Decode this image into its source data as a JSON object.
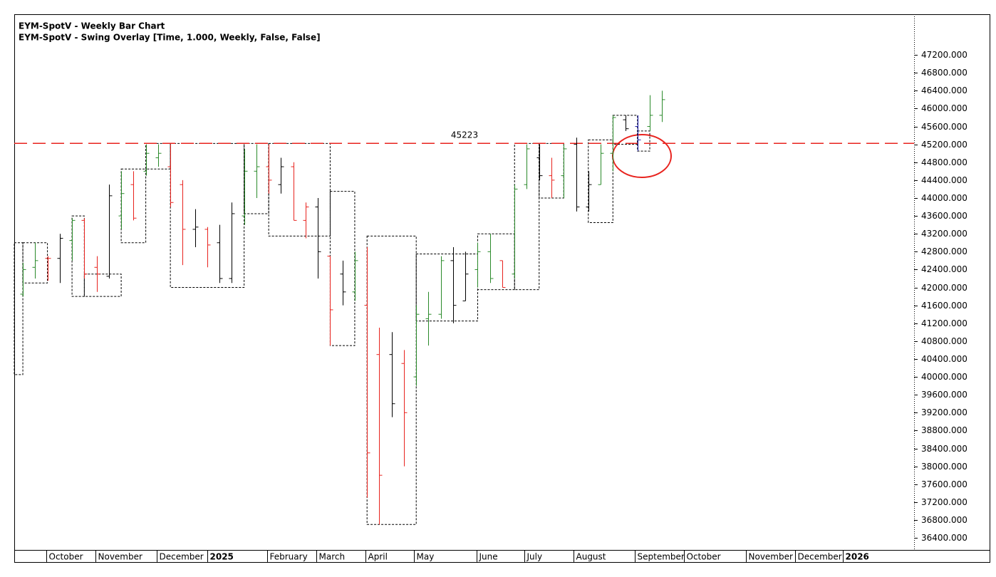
{
  "chart_data": {
    "type": "ohlc",
    "title": "EYM-SpotV - Weekly Bar Chart",
    "subtitle": "EYM-SpotV - Swing Overlay [Time, 1.000, Weekly, False, False]",
    "xlim": [
      -0.7,
      72.5
    ],
    "ylim": [
      36130,
      48110
    ],
    "yticks": [
      {
        "value": 36400,
        "label": "36400.000"
      },
      {
        "value": 36800,
        "label": "36800.000"
      },
      {
        "value": 37200,
        "label": "37200.000"
      },
      {
        "value": 37600,
        "label": "37600.000"
      },
      {
        "value": 38000,
        "label": "38000.000"
      },
      {
        "value": 38400,
        "label": "38400.000"
      },
      {
        "value": 38800,
        "label": "38800.000"
      },
      {
        "value": 39200,
        "label": "39200.000"
      },
      {
        "value": 39600,
        "label": "39600.000"
      },
      {
        "value": 40000,
        "label": "40000.000"
      },
      {
        "value": 40400,
        "label": "40400.000"
      },
      {
        "value": 40800,
        "label": "40800.000"
      },
      {
        "value": 41200,
        "label": "41200.000"
      },
      {
        "value": 41600,
        "label": "41600.000"
      },
      {
        "value": 42000,
        "label": "42000.000"
      },
      {
        "value": 42400,
        "label": "42400.000"
      },
      {
        "value": 42800,
        "label": "42800.000"
      },
      {
        "value": 43200,
        "label": "43200.000"
      },
      {
        "value": 43600,
        "label": "43600.000"
      },
      {
        "value": 44000,
        "label": "44000.000"
      },
      {
        "value": 44400,
        "label": "44400.000"
      },
      {
        "value": 44800,
        "label": "44800.000"
      },
      {
        "value": 45200,
        "label": "45200.000"
      },
      {
        "value": 45600,
        "label": "45600.000"
      },
      {
        "value": 46000,
        "label": "46000.000"
      },
      {
        "value": 46400,
        "label": "46400.000"
      },
      {
        "value": 46800,
        "label": "46800.000"
      },
      {
        "value": 47200,
        "label": "47200.000"
      }
    ],
    "xticks": [
      {
        "value": 1.9,
        "label": "October"
      },
      {
        "value": 5.9,
        "label": "November"
      },
      {
        "value": 10.9,
        "label": "December"
      },
      {
        "value": 15,
        "label": "2025"
      },
      {
        "value": 19.9,
        "label": "February"
      },
      {
        "value": 23.9,
        "label": "March"
      },
      {
        "value": 27.9,
        "label": "April"
      },
      {
        "value": 31.8,
        "label": "May"
      },
      {
        "value": 36.9,
        "label": "June"
      },
      {
        "value": 40.8,
        "label": "July"
      },
      {
        "value": 44.8,
        "label": "August"
      },
      {
        "value": 49.8,
        "label": "September"
      },
      {
        "value": 53.8,
        "label": "October"
      },
      {
        "value": 58.8,
        "label": "November"
      },
      {
        "value": 62.8,
        "label": "December"
      },
      {
        "value": 66.7,
        "label": "2026"
      }
    ],
    "bold_xticks": [
      "2025",
      "2026"
    ],
    "open": [
      41850,
      42450,
      42650,
      42650,
      43050,
      43500,
      42450,
      42250,
      43600,
      44300,
      44600,
      44900,
      44700,
      44300,
      43300,
      43300,
      43000,
      42200,
      43600,
      44600,
      44700,
      44300,
      44700,
      43500,
      43800,
      42700,
      42300,
      41900,
      41600,
      40500,
      40500,
      40300,
      40000,
      41300,
      41400,
      42600,
      41700,
      42400,
      42800,
      42600,
      42300,
      44300,
      44900,
      44500,
      44500,
      45200,
      43800,
      44300,
      45000,
      45750,
      45600,
      45600,
      45850
    ],
    "high": [
      42550,
      43000,
      42700,
      43200,
      43550,
      43550,
      42700,
      44300,
      44600,
      44600,
      45200,
      45200,
      45200,
      44400,
      43750,
      43350,
      43400,
      43900,
      45100,
      45200,
      45200,
      44900,
      44800,
      43900,
      44000,
      42700,
      42600,
      42800,
      42900,
      41100,
      41000,
      40600,
      41600,
      41900,
      42700,
      42900,
      42800,
      43000,
      43200,
      42600,
      44300,
      45200,
      45200,
      44900,
      45200,
      45350,
      44600,
      45200,
      45850,
      45850,
      45850,
      46300,
      46400
    ],
    "low": [
      41800,
      42200,
      42150,
      42100,
      42600,
      42200,
      41900,
      42200,
      43300,
      43500,
      44500,
      44700,
      43800,
      42500,
      42900,
      42450,
      42100,
      42100,
      43400,
      44000,
      44100,
      44100,
      43500,
      43100,
      42200,
      40700,
      41600,
      41700,
      37300,
      36700,
      39100,
      38000,
      39800,
      40700,
      41300,
      41200,
      41700,
      42000,
      42100,
      42000,
      42200,
      44200,
      44400,
      44000,
      44000,
      43700,
      43700,
      44300,
      44600,
      45500,
      45050,
      45500,
      45700
    ],
    "close": [
      42400,
      42600,
      42650,
      43100,
      43500,
      42300,
      42300,
      44050,
      44100,
      43550,
      45000,
      45000,
      43900,
      43300,
      43350,
      42950,
      42200,
      43650,
      44600,
      44700,
      44400,
      44700,
      43500,
      43800,
      42800,
      41500,
      41900,
      42600,
      38300,
      37800,
      39400,
      39200,
      41400,
      41400,
      42600,
      41600,
      42300,
      42800,
      42200,
      42000,
      44200,
      45100,
      44500,
      44400,
      45100,
      43800,
      44300,
      45000,
      45800,
      45550,
      45300,
      45850,
      46200
    ],
    "bar_colors": [
      "#2a8a2a",
      "#2a8a2a",
      "#e8231e",
      "#000000",
      "#2a8a2a",
      "#e8231e",
      "#e8231e",
      "#000000",
      "#2a8a2a",
      "#e8231e",
      "#2a8a2a",
      "#2a8a2a",
      "#e8231e",
      "#e8231e",
      "#000000",
      "#e8231e",
      "#000000",
      "#000000",
      "#2a8a2a",
      "#2a8a2a",
      "#e8231e",
      "#000000",
      "#e8231e",
      "#e8231e",
      "#000000",
      "#e8231e",
      "#000000",
      "#2a8a2a",
      "#e8231e",
      "#e8231e",
      "#000000",
      "#e8231e",
      "#2a8a2a",
      "#2a8a2a",
      "#2a8a2a",
      "#000000",
      "#000000",
      "#2a8a2a",
      "#2a8a2a",
      "#e8231e",
      "#2a8a2a",
      "#2a8a2a",
      "#000000",
      "#e8231e",
      "#2a8a2a",
      "#000000",
      "#000000",
      "#2a8a2a",
      "#2a8a2a",
      "#000000",
      "#1a1aa8",
      "#2a8a2a",
      "#2a8a2a"
    ],
    "swing_boxes": [
      {
        "start": -0.7,
        "end": 0,
        "high": 43000,
        "low": 40050
      },
      {
        "start": 0,
        "end": 2,
        "high": 43000,
        "low": 42100
      },
      {
        "start": 4,
        "end": 5,
        "high": 43600,
        "low": 41800
      },
      {
        "start": 5,
        "end": 8,
        "high": 42300,
        "low": 41800
      },
      {
        "start": 8,
        "end": 10,
        "high": 44650,
        "low": 43000
      },
      {
        "start": 10,
        "end": 12,
        "high": 45220,
        "low": 44650
      },
      {
        "start": 12,
        "end": 18,
        "high": 45220,
        "low": 42000
      },
      {
        "start": 18,
        "end": 20,
        "high": 45220,
        "low": 43650
      },
      {
        "start": 20,
        "end": 25,
        "high": 45220,
        "low": 43150
      },
      {
        "start": 25,
        "end": 27,
        "high": 44150,
        "low": 40700
      },
      {
        "start": 28,
        "end": 32,
        "high": 43150,
        "low": 36700
      },
      {
        "start": 32,
        "end": 37,
        "high": 42750,
        "low": 41250
      },
      {
        "start": 37,
        "end": 40,
        "high": 43200,
        "low": 41950
      },
      {
        "start": 40,
        "end": 42,
        "high": 45220,
        "low": 41950
      },
      {
        "start": 42,
        "end": 44,
        "high": 45220,
        "low": 44000
      },
      {
        "start": 46,
        "end": 48,
        "high": 45300,
        "low": 43450
      },
      {
        "start": 48,
        "end": 50,
        "high": 45850,
        "low": 45200
      },
      {
        "start": 50,
        "end": 51,
        "high": 45500,
        "low": 45050
      }
    ],
    "level": 45223,
    "level_color": "#e8231e"
  }
}
